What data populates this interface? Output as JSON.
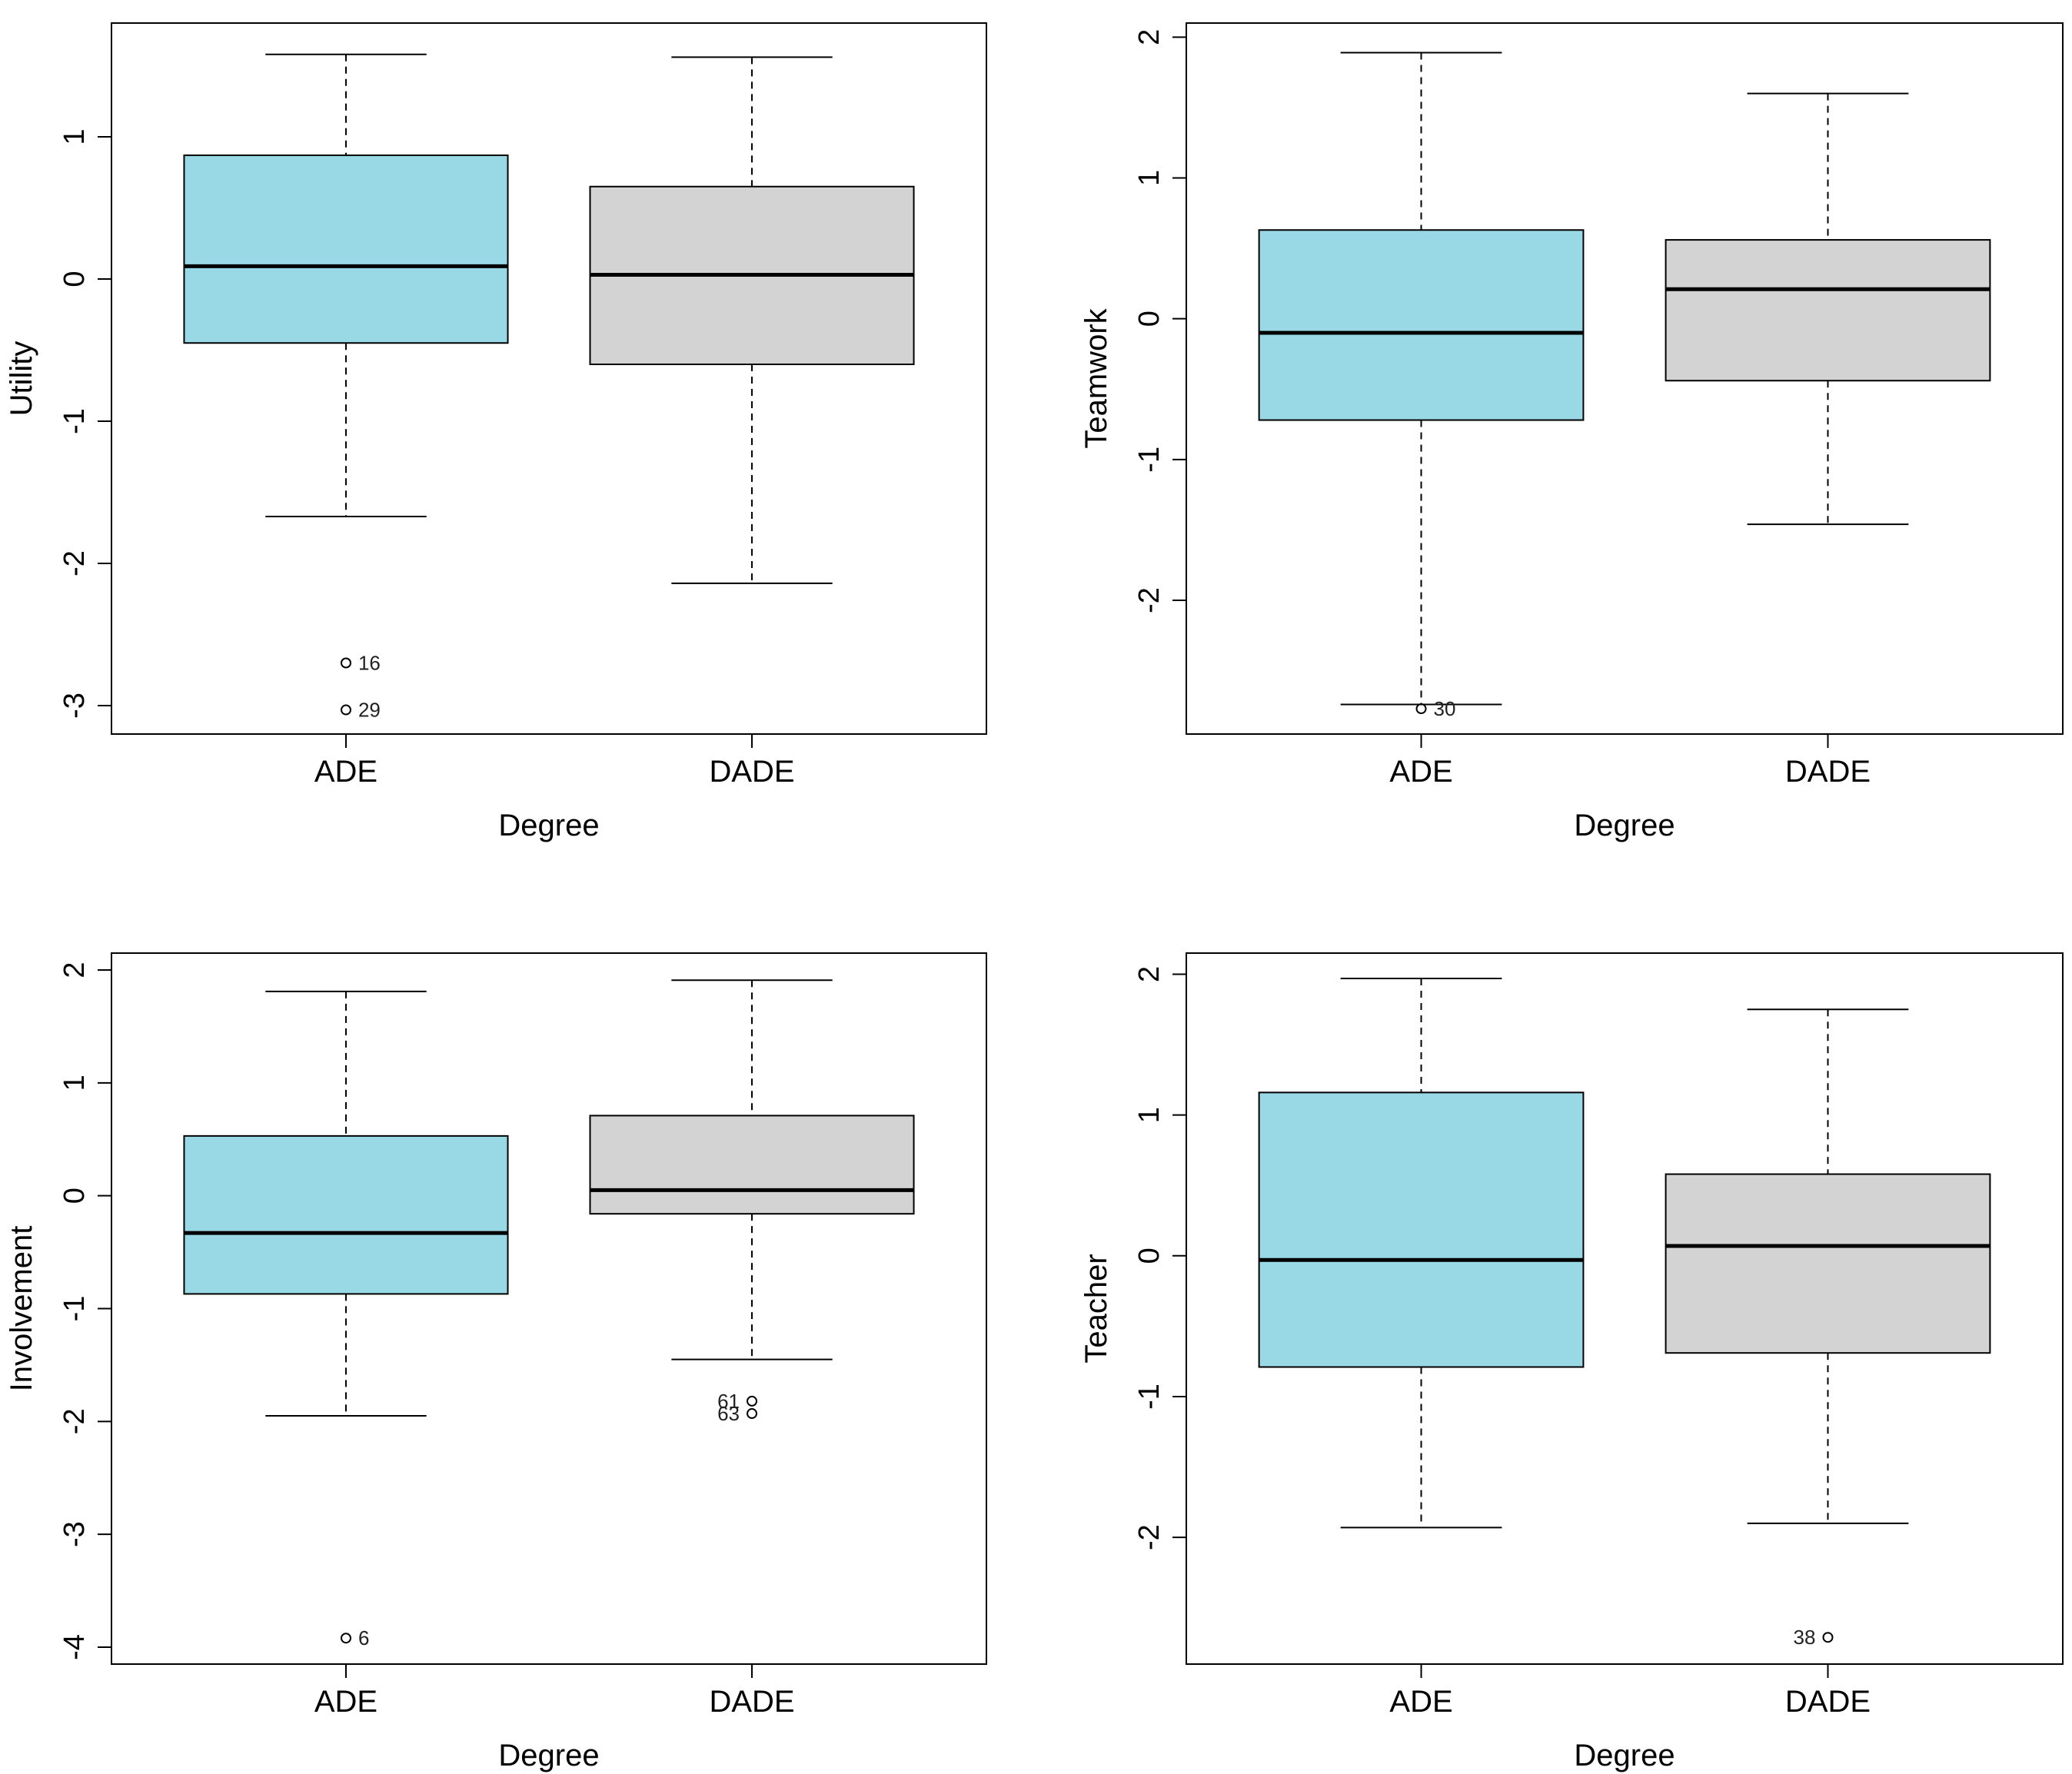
{
  "figure": {
    "description_free": true,
    "colors": {
      "ade_fill": "#99d9e6",
      "dade_fill": "#d3d3d3",
      "stroke": "#000000"
    }
  },
  "chart_data": [
    {
      "type": "boxplot",
      "title": "",
      "xlabel": "Degree",
      "ylabel": "Utility",
      "categories": [
        "ADE",
        "DADE"
      ],
      "ylim": [
        -3.2,
        1.8
      ],
      "yticks": [
        "1",
        "0",
        "-1",
        "-2",
        "-3"
      ],
      "ytick_values": [
        1,
        0,
        -1,
        -2,
        -3
      ],
      "boxes": [
        {
          "category": "ADE",
          "whisker_low": -1.67,
          "q1": -0.45,
          "median": 0.09,
          "q3": 0.87,
          "whisker_high": 1.58,
          "fill": "#99d9e6",
          "outliers": [
            {
              "value": -2.7,
              "label": "16"
            },
            {
              "value": -3.03,
              "label": "29"
            }
          ]
        },
        {
          "category": "DADE",
          "whisker_low": -2.14,
          "q1": -0.6,
          "median": 0.03,
          "q3": 0.65,
          "whisker_high": 1.56,
          "fill": "#d3d3d3",
          "outliers": []
        }
      ]
    },
    {
      "type": "boxplot",
      "title": "",
      "xlabel": "Degree",
      "ylabel": "Teamwork",
      "categories": [
        "ADE",
        "DADE"
      ],
      "ylim": [
        -2.95,
        2.1
      ],
      "yticks": [
        "2",
        "1",
        "0",
        "-1",
        "-2"
      ],
      "ytick_values": [
        2,
        1,
        0,
        -1,
        -2
      ],
      "boxes": [
        {
          "category": "ADE",
          "whisker_low": -2.74,
          "q1": -0.72,
          "median": -0.1,
          "q3": 0.63,
          "whisker_high": 1.89,
          "fill": "#99d9e6",
          "outliers": [
            {
              "value": -2.77,
              "label": "30"
            }
          ]
        },
        {
          "category": "DADE",
          "whisker_low": -1.46,
          "q1": -0.44,
          "median": 0.21,
          "q3": 0.56,
          "whisker_high": 1.6,
          "fill": "#d3d3d3",
          "outliers": []
        }
      ]
    },
    {
      "type": "boxplot",
      "title": "",
      "xlabel": "Degree",
      "ylabel": "Involvement",
      "categories": [
        "ADE",
        "DADE"
      ],
      "ylim": [
        -4.15,
        2.15
      ],
      "yticks": [
        "2",
        "1",
        "0",
        "-1",
        "-2",
        "-3",
        "-4"
      ],
      "ytick_values": [
        2,
        1,
        0,
        -1,
        -2,
        -3,
        -4
      ],
      "boxes": [
        {
          "category": "ADE",
          "whisker_low": -1.95,
          "q1": -0.87,
          "median": -0.33,
          "q3": 0.53,
          "whisker_high": 1.81,
          "fill": "#99d9e6",
          "outliers": [
            {
              "value": -3.92,
              "label": "6"
            }
          ]
        },
        {
          "category": "DADE",
          "whisker_low": -1.45,
          "q1": -0.16,
          "median": 0.05,
          "q3": 0.71,
          "whisker_high": 1.91,
          "fill": "#d3d3d3",
          "outliers": [
            {
              "value": -1.82,
              "label": "61"
            },
            {
              "value": -1.93,
              "label": "63"
            }
          ]
        }
      ]
    },
    {
      "type": "boxplot",
      "title": "",
      "xlabel": "Degree",
      "ylabel": "Teacher",
      "categories": [
        "ADE",
        "DADE"
      ],
      "ylim": [
        -2.9,
        2.15
      ],
      "yticks": [
        "2",
        "1",
        "0",
        "-1",
        "-2"
      ],
      "ytick_values": [
        2,
        1,
        0,
        -1,
        -2
      ],
      "boxes": [
        {
          "category": "ADE",
          "whisker_low": -1.93,
          "q1": -0.79,
          "median": -0.03,
          "q3": 1.16,
          "whisker_high": 1.97,
          "fill": "#99d9e6",
          "outliers": []
        },
        {
          "category": "DADE",
          "whisker_low": -1.9,
          "q1": -0.69,
          "median": 0.07,
          "q3": 0.58,
          "whisker_high": 1.75,
          "fill": "#d3d3d3",
          "outliers": [
            {
              "value": -2.71,
              "label": "38"
            }
          ]
        }
      ]
    }
  ]
}
